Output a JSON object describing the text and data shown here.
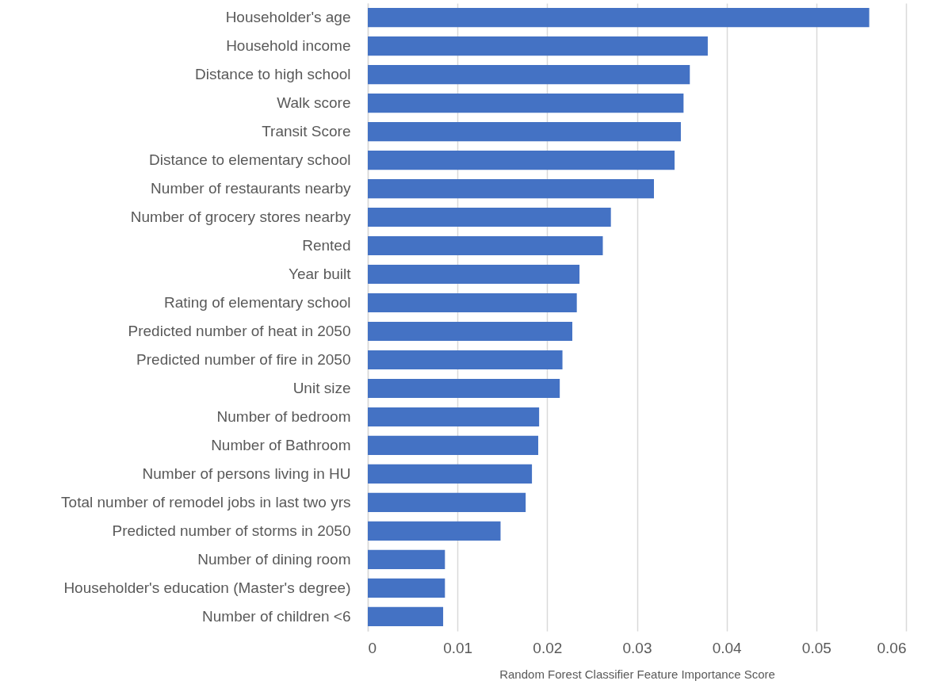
{
  "chart_data": {
    "type": "bar",
    "orientation": "horizontal",
    "xlabel": "Random Forest Classifier Feature Importance Score",
    "categories": [
      "Householder's age",
      "Household income",
      "Distance to high school",
      "Walk score",
      "Transit Score",
      "Distance to elementary school",
      "Number of restaurants nearby",
      "Number of grocery stores nearby",
      "Rented",
      "Year built",
      "Rating of elementary school",
      "Predicted number of heat in 2050",
      "Predicted number of fire in 2050",
      "Unit size",
      "Number of bedroom",
      "Number of Bathroom",
      "Number of persons living in HU",
      "Total number of remodel jobs in last two yrs",
      "Predicted number of storms in 2050",
      "Number of dining room",
      "Householder's education (Master's degree)",
      "Number of children <6"
    ],
    "values": [
      0.0559,
      0.0379,
      0.0359,
      0.0352,
      0.0349,
      0.0342,
      0.0319,
      0.0271,
      0.0262,
      0.0236,
      0.0233,
      0.0228,
      0.0217,
      0.0214,
      0.0191,
      0.019,
      0.0183,
      0.0176,
      0.0148,
      0.0086,
      0.0086,
      0.0084
    ],
    "color": "#4472c4",
    "xlim": [
      0,
      0.06
    ],
    "xticks": [
      0,
      0.01,
      0.02,
      0.03,
      0.04,
      0.05,
      0.06
    ],
    "grid": "x"
  }
}
